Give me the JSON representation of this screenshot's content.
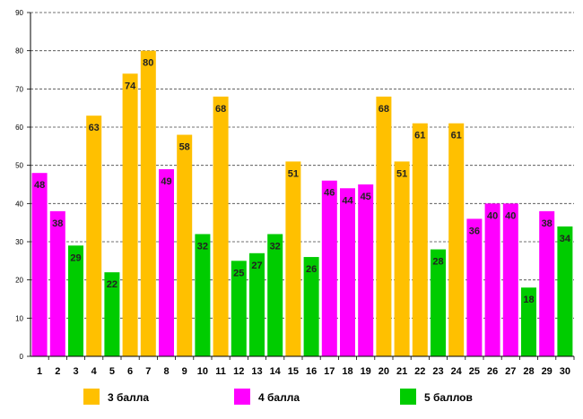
{
  "chart_data": {
    "type": "bar",
    "title": "",
    "xlabel": "",
    "ylabel": "",
    "ylim": [
      0,
      90
    ],
    "yticks": [
      "0",
      "10",
      "20",
      "30",
      "40",
      "50",
      "60",
      "70",
      "80",
      "90"
    ],
    "grid": "horizontal-dashed",
    "legend_position": "bottom",
    "categories": [
      "1",
      "2",
      "3",
      "4",
      "5",
      "6",
      "7",
      "8",
      "9",
      "10",
      "11",
      "12",
      "13",
      "14",
      "15",
      "16",
      "17",
      "18",
      "19",
      "20",
      "21",
      "22",
      "23",
      "24",
      "25",
      "26",
      "27",
      "28",
      "29",
      "30"
    ],
    "values": [
      48,
      38,
      29,
      63,
      22,
      74,
      80,
      49,
      58,
      32,
      68,
      25,
      27,
      32,
      51,
      26,
      46,
      44,
      45,
      68,
      51,
      61,
      28,
      61,
      36,
      40,
      40,
      18,
      38,
      34
    ],
    "groups": [
      1,
      1,
      2,
      0,
      2,
      0,
      0,
      1,
      0,
      2,
      0,
      2,
      2,
      2,
      0,
      2,
      1,
      1,
      1,
      0,
      0,
      0,
      2,
      0,
      1,
      1,
      1,
      2,
      1,
      2
    ],
    "series": [
      {
        "name": "3 балла",
        "color": "#FFC000"
      },
      {
        "name": "4 балла",
        "color": "#FF00FF"
      },
      {
        "name": "5 баллов",
        "color": "#00CC00"
      }
    ]
  }
}
